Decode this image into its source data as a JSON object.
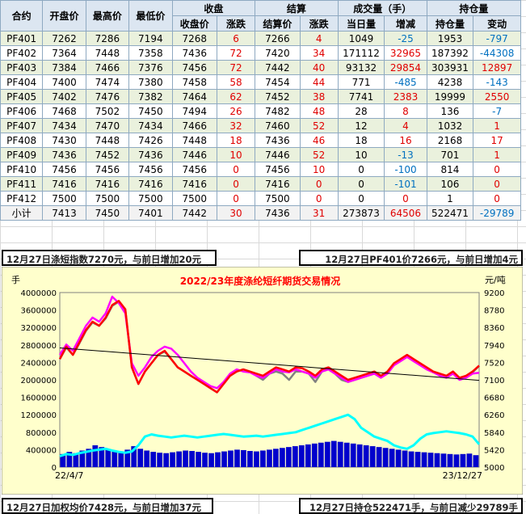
{
  "table": {
    "headers": {
      "contract": "合约",
      "open": "开盘价",
      "high": "最高价",
      "low": "最低价",
      "close_group": "收盘",
      "settle_group": "结算",
      "volume_group": "成交量（手）",
      "oi_group": "持仓量",
      "close_price": "收盘价",
      "close_chg": "涨跌",
      "settle_price": "结算价",
      "settle_chg": "涨跌",
      "volume_today": "当日量",
      "volume_chg": "增减",
      "oi_qty": "持仓量",
      "oi_chg": "变动"
    },
    "rows": [
      {
        "c": "PF401",
        "o": "7262",
        "h": "7286",
        "l": "7194",
        "cp": "7268",
        "cc": "6",
        "sp": "7266",
        "sc": "4",
        "v": "1049",
        "vc": "-25",
        "oi": "1953",
        "oc": "-797"
      },
      {
        "c": "PF402",
        "o": "7364",
        "h": "7448",
        "l": "7358",
        "cp": "7436",
        "cc": "72",
        "sp": "7420",
        "sc": "34",
        "v": "171112",
        "vc": "32965",
        "oi": "187392",
        "oc": "-44308"
      },
      {
        "c": "PF403",
        "o": "7384",
        "h": "7466",
        "l": "7376",
        "cp": "7456",
        "cc": "72",
        "sp": "7442",
        "sc": "40",
        "v": "93132",
        "vc": "29854",
        "oi": "303931",
        "oc": "12897"
      },
      {
        "c": "PF404",
        "o": "7400",
        "h": "7474",
        "l": "7380",
        "cp": "7458",
        "cc": "58",
        "sp": "7454",
        "sc": "44",
        "v": "771",
        "vc": "-485",
        "oi": "4238",
        "oc": "-143"
      },
      {
        "c": "PF405",
        "o": "7402",
        "h": "7476",
        "l": "7382",
        "cp": "7464",
        "cc": "62",
        "sp": "7452",
        "sc": "38",
        "v": "7741",
        "vc": "2383",
        "oi": "19999",
        "oc": "2550"
      },
      {
        "c": "PF406",
        "o": "7468",
        "h": "7502",
        "l": "7450",
        "cp": "7494",
        "cc": "26",
        "sp": "7482",
        "sc": "48",
        "v": "28",
        "vc": "8",
        "oi": "136",
        "oc": "-7"
      },
      {
        "c": "PF407",
        "o": "7434",
        "h": "7470",
        "l": "7434",
        "cp": "7466",
        "cc": "32",
        "sp": "7460",
        "sc": "52",
        "v": "12",
        "vc": "4",
        "oi": "1032",
        "oc": "1"
      },
      {
        "c": "PF408",
        "o": "7430",
        "h": "7448",
        "l": "7426",
        "cp": "7448",
        "cc": "18",
        "sp": "7436",
        "sc": "46",
        "v": "18",
        "vc": "16",
        "oi": "2168",
        "oc": "17"
      },
      {
        "c": "PF409",
        "o": "7436",
        "h": "7452",
        "l": "7436",
        "cp": "7446",
        "cc": "10",
        "sp": "7446",
        "sc": "52",
        "v": "10",
        "vc": "-13",
        "oi": "701",
        "oc": "1"
      },
      {
        "c": "PF410",
        "o": "7456",
        "h": "7456",
        "l": "7456",
        "cp": "7456",
        "cc": "0",
        "sp": "7456",
        "sc": "10",
        "v": "0",
        "vc": "-100",
        "oi": "814",
        "oc": "0"
      },
      {
        "c": "PF411",
        "o": "7416",
        "h": "7416",
        "l": "7416",
        "cp": "7416",
        "cc": "0",
        "sp": "7416",
        "sc": "0",
        "v": "0",
        "vc": "-101",
        "oi": "106",
        "oc": "0"
      },
      {
        "c": "PF412",
        "o": "7500",
        "h": "7500",
        "l": "7500",
        "cp": "7500",
        "cc": "0",
        "sp": "7500",
        "sc": "0",
        "v": "0",
        "vc": "0",
        "oi": "1",
        "oc": "0"
      }
    ],
    "subtotal": {
      "c": "小计",
      "o": "7413",
      "h": "7450",
      "l": "7401",
      "cp": "7442",
      "cc": "30",
      "sp": "7436",
      "sc": "31",
      "v": "273873",
      "vc": "64506",
      "oi": "522471",
      "oc": "-29789"
    }
  },
  "banners": {
    "top_left": "12月27日涤短指数7270元，与前日增加20元",
    "top_right": "12月27日PF401价7266元，与前日增加4元",
    "bottom_left": "12月27日加权均价7428元，与前日增加37元",
    "bottom_right": "12月27日持仓522471手，与前日减少29789手"
  },
  "chart_data": {
    "type": "line",
    "title": "2022/23年度涤纶短纤期货交易情况",
    "y_left_unit": "手",
    "y_right_unit": "元/吨",
    "y_left_ticks": [
      "4000000",
      "3600000",
      "3200000",
      "2800000",
      "2400000",
      "2000000",
      "1600000",
      "1200000",
      "800000",
      "400000",
      "0"
    ],
    "y_right_ticks": [
      "9200",
      "8780",
      "8360",
      "7940",
      "7520",
      "7100",
      "6680",
      "6260",
      "5840",
      "5420",
      "5000"
    ],
    "ylim_left": [
      0,
      4000000
    ],
    "ylim_right": [
      5000,
      9200
    ],
    "x_start_label": "22/4/7",
    "x_end_label": "23/12/27",
    "price_series": {
      "name": "",
      "color": "#ff0000",
      "values": [
        7600,
        7900,
        7700,
        8000,
        8300,
        8500,
        8400,
        8600,
        8900,
        9000,
        8800,
        7400,
        7000,
        7300,
        7500,
        7700,
        7800,
        7600,
        7400,
        7300,
        7200,
        7100,
        7000,
        6900,
        6800,
        7000,
        7200,
        7300,
        7350,
        7300,
        7250,
        7200,
        7300,
        7400,
        7350,
        7300,
        7400,
        7380,
        7300,
        7200,
        7350,
        7400,
        7300,
        7200,
        7100,
        7150,
        7200,
        7250,
        7300,
        7200,
        7300,
        7500,
        7600,
        7700,
        7600,
        7500,
        7400,
        7300,
        7250,
        7200,
        7300,
        7150,
        7200,
        7300,
        7442
      ]
    },
    "index_series": {
      "name": "",
      "color": "#ff00ff",
      "values": [
        7700,
        7950,
        7800,
        8100,
        8400,
        8600,
        8500,
        8700,
        9100,
        8950,
        8700,
        7500,
        7200,
        7400,
        7650,
        7800,
        7900,
        7850,
        7700,
        7500,
        7300,
        7150,
        7050,
        6950,
        6900,
        7050,
        7250,
        7350,
        7300,
        7280,
        7200,
        7150,
        7250,
        7350,
        7300,
        7280,
        7350,
        7300,
        7250,
        7150,
        7300,
        7350,
        7250,
        7150,
        7050,
        7100,
        7150,
        7200,
        7250,
        7150,
        7250,
        7450,
        7550,
        7650,
        7550,
        7450,
        7350,
        7280,
        7200,
        7150,
        7250,
        7100,
        7150,
        7250,
        7270
      ]
    },
    "settle_series": {
      "name": "",
      "color": "#808080",
      "values": [
        7600,
        7880,
        7700,
        7980,
        8280,
        8480,
        8400,
        8580,
        8880,
        8980,
        8780,
        7400,
        7000,
        7300,
        7500,
        7700,
        7780,
        7600,
        7400,
        7300,
        7200,
        7100,
        7000,
        6900,
        6800,
        7000,
        7200,
        7300,
        7350,
        7300,
        7200,
        7100,
        7250,
        7300,
        7250,
        7100,
        7300,
        7300,
        7250,
        7050,
        7300,
        7350,
        7250,
        7100,
        7050,
        7100,
        7150,
        7200,
        7250,
        7180,
        7280,
        7480,
        7580,
        7680,
        7580,
        7480,
        7380,
        7280,
        7230,
        7180,
        7280,
        7130,
        7180,
        7280,
        7436
      ]
    },
    "oi_series": {
      "name": "",
      "color": "#00ffff",
      "values": [
        250000,
        300000,
        280000,
        320000,
        350000,
        380000,
        400000,
        420000,
        380000,
        350000,
        330000,
        360000,
        500000,
        700000,
        750000,
        720000,
        700000,
        680000,
        700000,
        720000,
        700000,
        680000,
        700000,
        720000,
        740000,
        760000,
        740000,
        720000,
        700000,
        710000,
        720000,
        700000,
        720000,
        740000,
        760000,
        780000,
        800000,
        850000,
        900000,
        950000,
        1000000,
        1050000,
        1100000,
        1150000,
        1200000,
        1100000,
        900000,
        800000,
        700000,
        650000,
        600000,
        500000,
        450000,
        420000,
        500000,
        650000,
        750000,
        780000,
        800000,
        820000,
        800000,
        780000,
        750000,
        700000,
        522471
      ]
    },
    "volume_series": {
      "name": "",
      "color": "#0000cc",
      "values": [
        300000,
        350000,
        320000,
        380000,
        420000,
        500000,
        460000,
        400000,
        380000,
        350000,
        400000,
        480000,
        420000,
        380000,
        350000,
        330000,
        320000,
        340000,
        360000,
        380000,
        370000,
        350000,
        330000,
        320000,
        340000,
        360000,
        380000,
        400000,
        390000,
        370000,
        360000,
        380000,
        400000,
        420000,
        440000,
        460000,
        480000,
        500000,
        520000,
        540000,
        560000,
        580000,
        600000,
        580000,
        560000,
        540000,
        520000,
        500000,
        480000,
        460000,
        440000,
        420000,
        400000,
        380000,
        360000,
        350000,
        340000,
        330000,
        320000,
        310000,
        300000,
        290000,
        300000,
        310000,
        273873
      ]
    }
  }
}
